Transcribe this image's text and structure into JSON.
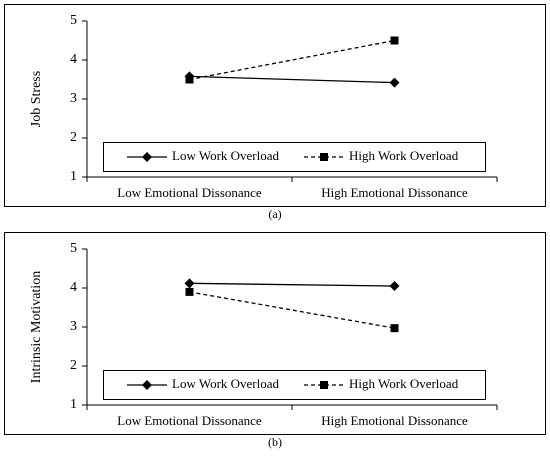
{
  "chart_data": [
    {
      "type": "line",
      "caption": "(a)",
      "ylabel": "Job Stress",
      "categories": [
        "Low Emotional Dissonance",
        "High Emotional Dissonance"
      ],
      "series": [
        {
          "name": "Low Work Overload",
          "color": "#000000",
          "marker": "diamond",
          "dashed": false,
          "values": [
            3.58,
            3.42
          ]
        },
        {
          "name": "High Work Overload",
          "color": "#000000",
          "marker": "square",
          "dashed": true,
          "values": [
            3.5,
            4.5
          ]
        }
      ],
      "ylim": [
        1,
        5
      ],
      "yticks": [
        1,
        2,
        3,
        4,
        5
      ],
      "grid": false,
      "legend": "bottom"
    },
    {
      "type": "line",
      "caption": "(b)",
      "ylabel": "Intrinsic Motivation",
      "categories": [
        "Low Emotional Dissonance",
        "High Emotional Dissonance"
      ],
      "series": [
        {
          "name": "Low Work Overload",
          "color": "#000000",
          "marker": "diamond",
          "dashed": false,
          "values": [
            4.12,
            4.05
          ]
        },
        {
          "name": "High Work Overload",
          "color": "#000000",
          "marker": "square",
          "dashed": true,
          "values": [
            3.9,
            2.97
          ]
        }
      ],
      "ylim": [
        1,
        5
      ],
      "yticks": [
        1,
        2,
        3,
        4,
        5
      ],
      "grid": false,
      "legend": "bottom"
    }
  ]
}
